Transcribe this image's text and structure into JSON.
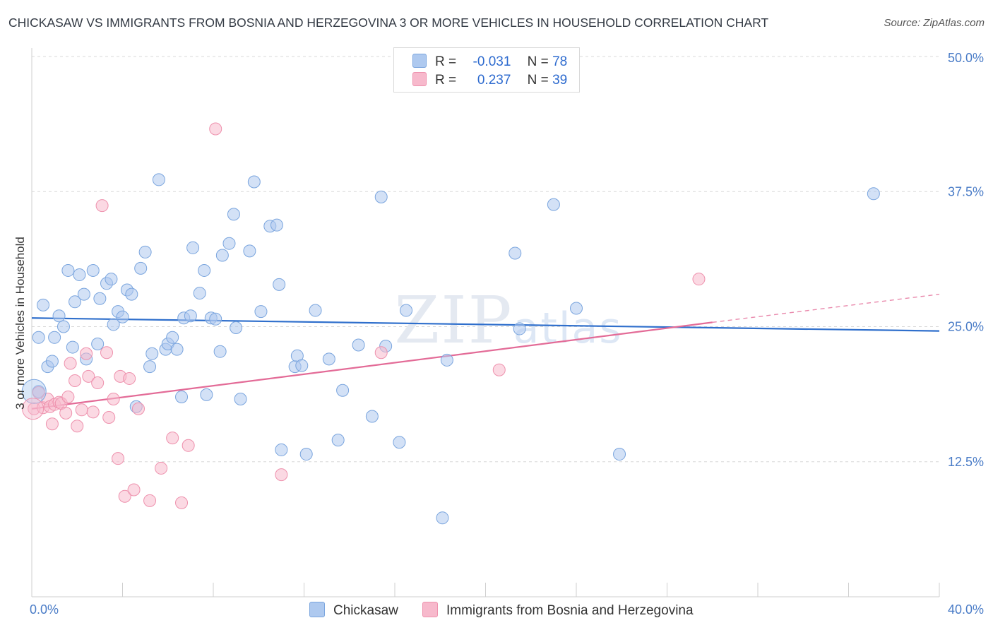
{
  "title": "CHICKASAW VS IMMIGRANTS FROM BOSNIA AND HERZEGOVINA 3 OR MORE VEHICLES IN HOUSEHOLD CORRELATION CHART",
  "source": "Source: ZipAtlas.com",
  "watermark": "ZIPatlas",
  "colors": {
    "blue_fill": "#aec9ef",
    "blue_stroke": "#7aa5de",
    "blue_line": "#2f6fcc",
    "pink_fill": "#f7b9cc",
    "pink_stroke": "#ee91ad",
    "pink_line": "#e36b97",
    "tick_text": "#4a7cc7",
    "grid": "#d8d8d8"
  },
  "legend": {
    "r_label": "R =",
    "n_label": "N =",
    "rows": [
      {
        "r": "-0.031",
        "n": "78",
        "color": "blue"
      },
      {
        "r": "0.237",
        "n": "39",
        "color": "pink"
      }
    ]
  },
  "chart_data": {
    "type": "scatter",
    "title": "CHICKASAW VS IMMIGRANTS FROM BOSNIA AND HERZEGOVINA 3 OR MORE VEHICLES IN HOUSEHOLD CORRELATION CHART",
    "xlabel": "",
    "ylabel": "3 or more Vehicles in Household",
    "xlim": [
      0,
      40
    ],
    "ylim": [
      0,
      50
    ],
    "x_ticks_labeled": [
      "0.0%",
      "40.0%"
    ],
    "y_ticks": [
      12.5,
      25.0,
      37.5,
      50.0
    ],
    "y_tick_labels": [
      "12.5%",
      "25.0%",
      "37.5%",
      "50.0%"
    ],
    "grid": true,
    "legend_position": "bottom",
    "series": [
      {
        "name": "Chickasaw",
        "color": "blue",
        "trend": {
          "x0": 0,
          "y0": 25.8,
          "x1": 40,
          "y1": 24.6
        },
        "points": [
          [
            0.3,
            19.0
          ],
          [
            0.3,
            24.0
          ],
          [
            0.5,
            27.0
          ],
          [
            0.7,
            21.3
          ],
          [
            0.9,
            21.8
          ],
          [
            1.0,
            24.0
          ],
          [
            1.2,
            26.0
          ],
          [
            1.4,
            25.0
          ],
          [
            1.6,
            30.2
          ],
          [
            1.8,
            23.1
          ],
          [
            1.9,
            27.3
          ],
          [
            2.1,
            29.8
          ],
          [
            2.3,
            28.0
          ],
          [
            2.4,
            22.0
          ],
          [
            2.7,
            30.2
          ],
          [
            2.9,
            23.4
          ],
          [
            3.0,
            27.6
          ],
          [
            3.3,
            29.0
          ],
          [
            3.5,
            29.4
          ],
          [
            3.6,
            25.2
          ],
          [
            3.8,
            26.4
          ],
          [
            4.0,
            25.9
          ],
          [
            4.2,
            28.4
          ],
          [
            4.4,
            28.0
          ],
          [
            4.6,
            17.6
          ],
          [
            4.8,
            30.4
          ],
          [
            5.0,
            31.9
          ],
          [
            5.2,
            21.3
          ],
          [
            5.3,
            22.5
          ],
          [
            5.6,
            38.6
          ],
          [
            5.9,
            22.9
          ],
          [
            6.0,
            23.4
          ],
          [
            6.2,
            24.0
          ],
          [
            6.4,
            22.9
          ],
          [
            6.6,
            18.5
          ],
          [
            6.7,
            25.8
          ],
          [
            7.0,
            26.0
          ],
          [
            7.1,
            32.3
          ],
          [
            7.4,
            28.1
          ],
          [
            7.6,
            30.2
          ],
          [
            7.7,
            18.7
          ],
          [
            7.9,
            25.8
          ],
          [
            8.1,
            25.7
          ],
          [
            8.3,
            22.7
          ],
          [
            8.4,
            31.6
          ],
          [
            8.7,
            32.7
          ],
          [
            8.9,
            35.4
          ],
          [
            9.0,
            24.9
          ],
          [
            9.2,
            18.3
          ],
          [
            9.6,
            32.0
          ],
          [
            9.8,
            38.4
          ],
          [
            10.1,
            26.4
          ],
          [
            10.5,
            34.3
          ],
          [
            10.8,
            34.4
          ],
          [
            10.9,
            28.9
          ],
          [
            11.0,
            13.6
          ],
          [
            11.6,
            21.3
          ],
          [
            11.7,
            22.3
          ],
          [
            11.9,
            21.4
          ],
          [
            12.1,
            13.2
          ],
          [
            12.5,
            26.5
          ],
          [
            13.1,
            22.0
          ],
          [
            13.5,
            14.5
          ],
          [
            13.7,
            19.1
          ],
          [
            14.4,
            23.3
          ],
          [
            15.0,
            16.7
          ],
          [
            15.4,
            37.0
          ],
          [
            15.6,
            23.2
          ],
          [
            16.2,
            14.3
          ],
          [
            16.5,
            26.5
          ],
          [
            18.1,
            7.3
          ],
          [
            18.3,
            21.9
          ],
          [
            21.3,
            31.8
          ],
          [
            21.5,
            24.8
          ],
          [
            23.0,
            36.3
          ],
          [
            24.0,
            26.7
          ],
          [
            25.9,
            13.2
          ],
          [
            37.1,
            37.3
          ]
        ]
      },
      {
        "name": "Immigrants from Bosnia and Herzegovina",
        "color": "pink",
        "trend": {
          "x0": 0,
          "y0": 17.4,
          "x1": 30,
          "y1": 25.4,
          "dashed_to_x": 40,
          "dashed_to_y": 28.0
        },
        "points": [
          [
            0.1,
            17.4
          ],
          [
            0.3,
            18.9
          ],
          [
            0.5,
            17.5
          ],
          [
            0.7,
            18.3
          ],
          [
            0.8,
            17.6
          ],
          [
            0.9,
            16.0
          ],
          [
            1.0,
            17.8
          ],
          [
            1.2,
            18.0
          ],
          [
            1.3,
            17.9
          ],
          [
            1.5,
            17.0
          ],
          [
            1.6,
            18.5
          ],
          [
            1.7,
            21.6
          ],
          [
            1.9,
            20.0
          ],
          [
            2.0,
            15.8
          ],
          [
            2.2,
            17.3
          ],
          [
            2.4,
            22.5
          ],
          [
            2.5,
            20.4
          ],
          [
            2.7,
            17.1
          ],
          [
            2.9,
            19.8
          ],
          [
            3.1,
            36.2
          ],
          [
            3.3,
            22.6
          ],
          [
            3.4,
            16.6
          ],
          [
            3.6,
            18.3
          ],
          [
            3.8,
            12.8
          ],
          [
            3.9,
            20.4
          ],
          [
            4.1,
            9.3
          ],
          [
            4.3,
            20.2
          ],
          [
            4.5,
            9.9
          ],
          [
            4.7,
            17.4
          ],
          [
            5.2,
            8.9
          ],
          [
            5.7,
            11.9
          ],
          [
            6.2,
            14.7
          ],
          [
            6.6,
            8.7
          ],
          [
            6.9,
            14.0
          ],
          [
            8.1,
            43.3
          ],
          [
            11.0,
            11.3
          ],
          [
            15.4,
            22.6
          ],
          [
            20.6,
            21.0
          ],
          [
            29.4,
            29.4
          ]
        ]
      }
    ]
  },
  "bottom_legend": [
    {
      "label": "Chickasaw",
      "color": "blue"
    },
    {
      "label": "Immigrants from Bosnia and Herzegovina",
      "color": "pink"
    }
  ]
}
